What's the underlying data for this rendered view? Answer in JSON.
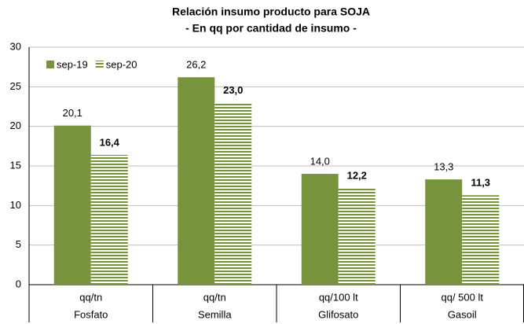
{
  "chart_data": {
    "type": "bar",
    "title": "Relación insumo producto para SOJA",
    "subtitle": "- En qq por cantidad de insumo -",
    "categories": [
      "Fosfato",
      "Semilla",
      "Glifosato",
      "Gasoil"
    ],
    "units": [
      "qq/tn",
      "qq/tn",
      "qq/100 lt",
      "qq/ 500 lt"
    ],
    "series": [
      {
        "name": "sep-19",
        "color": "#77933c",
        "values": [
          20.1,
          26.2,
          14.0,
          13.3
        ],
        "value_labels": [
          "20,1",
          "26,2",
          "14,0",
          "13,3"
        ]
      },
      {
        "name": "sep-20",
        "color": "#77933c",
        "values": [
          16.4,
          23.0,
          12.2,
          11.3
        ],
        "value_labels": [
          "16,4",
          "23,0",
          "12,2",
          "11,3"
        ]
      }
    ],
    "ylim": [
      0,
      30
    ],
    "yticks": [
      0,
      5,
      10,
      15,
      20,
      25,
      30
    ],
    "grid": true,
    "legend": "top-left"
  }
}
